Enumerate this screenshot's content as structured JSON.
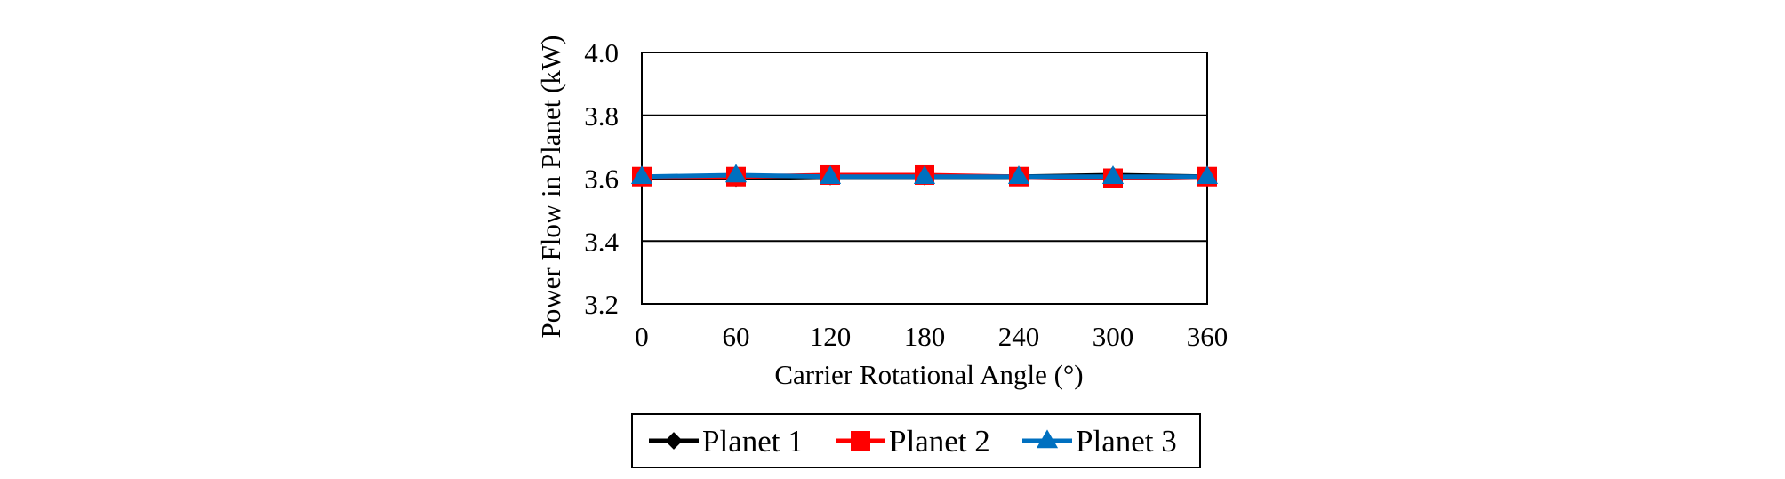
{
  "chart_data": {
    "type": "line",
    "title": "",
    "xlabel": "Carrier Rotational Angle (°)",
    "ylabel": "Power Flow in Planet (kW)",
    "xlim": [
      0,
      360
    ],
    "ylim": [
      3.2,
      4.0
    ],
    "x_ticks": [
      "0",
      "60",
      "120",
      "180",
      "240",
      "300",
      "360"
    ],
    "y_ticks": [
      "3.2",
      "3.4",
      "3.6",
      "3.8",
      "4.0"
    ],
    "grid": "horizontal",
    "legend_position": "bottom",
    "x": [
      0,
      60,
      120,
      180,
      240,
      300,
      360
    ],
    "series": [
      {
        "name": "Planet 1",
        "color": "#000000",
        "marker": "diamond",
        "values": [
          3.6,
          3.6,
          3.605,
          3.605,
          3.605,
          3.61,
          3.605
        ]
      },
      {
        "name": "Planet 2",
        "color": "#ff0000",
        "marker": "square",
        "values": [
          3.605,
          3.605,
          3.61,
          3.61,
          3.605,
          3.6,
          3.605
        ]
      },
      {
        "name": "Planet 3",
        "color": "#0070c0",
        "marker": "triangle",
        "values": [
          3.605,
          3.61,
          3.605,
          3.605,
          3.605,
          3.605,
          3.605
        ]
      }
    ]
  }
}
